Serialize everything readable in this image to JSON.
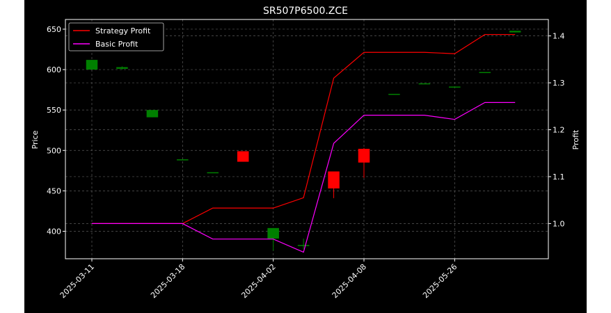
{
  "chart_data": {
    "type": "candlestick",
    "title": "SR507P6500.ZCE",
    "xlabel": "",
    "ylabel_left": "Price",
    "ylabel_right": "Profit",
    "grid": true,
    "legend_position": "top-left",
    "categories": [
      "2025-03-11",
      "",
      "",
      "2025-03-18",
      "",
      "",
      "2025-04-02",
      "",
      "",
      "2025-04-08",
      "",
      "",
      "2025-05-26",
      "",
      ""
    ],
    "x_tick_labels": [
      "2025-03-11",
      "2025-03-18",
      "2025-04-02",
      "2025-04-08",
      "2025-05-26"
    ],
    "ylim_left": [
      366,
      662
    ],
    "yticks_left": [
      400,
      450,
      500,
      550,
      600,
      650
    ],
    "ylim_right": [
      0.925,
      1.435
    ],
    "yticks_right": [
      1.0,
      1.1,
      1.2,
      1.3,
      1.4
    ],
    "candles": [
      {
        "open": 600,
        "close": 612,
        "high": 612,
        "low": 600
      },
      {
        "open": 601,
        "close": 603,
        "high": 604,
        "low": 600
      },
      {
        "open": 541,
        "close": 550,
        "high": 550,
        "low": 541
      },
      {
        "open": 489,
        "close": 489,
        "high": 489,
        "low": 489
      },
      {
        "open": 473,
        "close": 473,
        "high": 473,
        "low": 473
      },
      {
        "open": 499,
        "close": 486,
        "high": 499,
        "low": 486
      },
      {
        "open": 391,
        "close": 404,
        "high": 404,
        "low": 376
      },
      {
        "open": 382,
        "close": 383,
        "high": 391,
        "low": 378
      },
      {
        "open": 474,
        "close": 453,
        "high": 474,
        "low": 441
      },
      {
        "open": 502,
        "close": 485,
        "high": 503,
        "low": 466
      },
      {
        "open": 570,
        "close": 570,
        "high": 570,
        "low": 570
      },
      {
        "open": 582,
        "close": 583,
        "high": 583,
        "low": 582
      },
      {
        "open": 579,
        "close": 579,
        "high": 579,
        "low": 579
      },
      {
        "open": 597,
        "close": 597,
        "high": 597,
        "low": 597
      },
      {
        "open": 646,
        "close": 648,
        "high": 648,
        "low": 646
      }
    ],
    "series": [
      {
        "name": "Strategy Profit",
        "color": "#ff0000",
        "values": [
          1.0,
          1.0,
          1.0,
          1.0,
          1.033,
          1.033,
          1.033,
          1.055,
          1.31,
          1.365,
          1.365,
          1.365,
          1.362,
          1.403,
          1.403
        ]
      },
      {
        "name": "Basic Profit",
        "color": "#ff00ff",
        "values": [
          1.0,
          1.0,
          1.0,
          1.0,
          0.967,
          0.967,
          0.967,
          0.939,
          1.171,
          1.231,
          1.231,
          1.231,
          1.222,
          1.258,
          1.258
        ]
      }
    ],
    "up_color": "#008000",
    "down_color": "#ff0000"
  }
}
